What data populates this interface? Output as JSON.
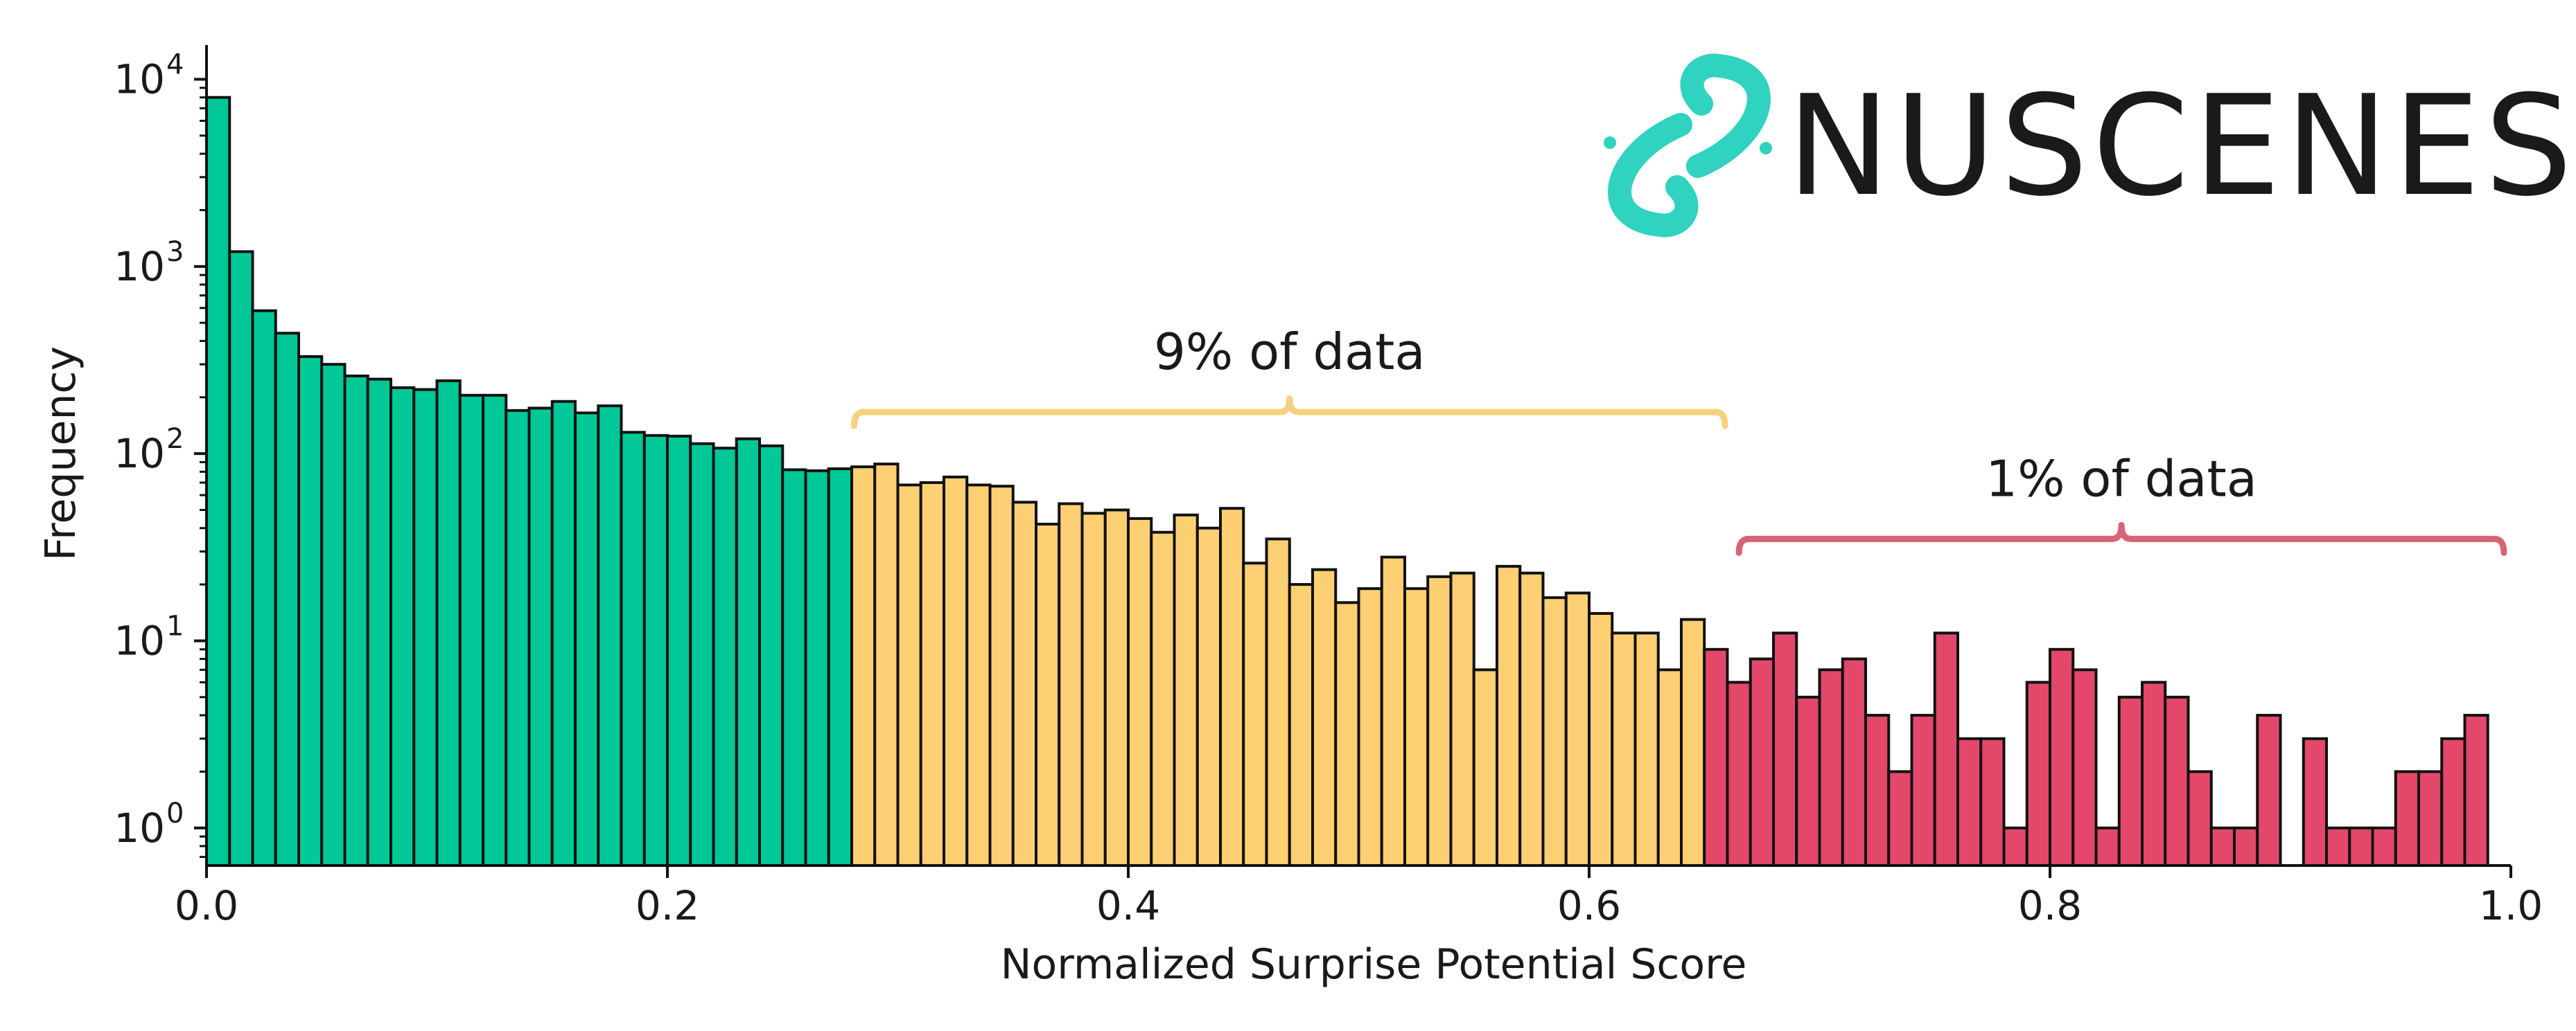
{
  "chart_data": {
    "type": "bar",
    "subtype": "histogram",
    "xlabel": "Normalized Surprise Potential Score",
    "ylabel": "Frequency",
    "yscale": "log",
    "xlim": [
      0.0,
      1.0
    ],
    "ylim": [
      0.63,
      14000
    ],
    "grid": false,
    "xticks": [
      {
        "value": 0.0,
        "label": "0.0"
      },
      {
        "value": 0.2,
        "label": "0.2"
      },
      {
        "value": 0.4,
        "label": "0.4"
      },
      {
        "value": 0.6,
        "label": "0.6"
      },
      {
        "value": 0.8,
        "label": "0.8"
      },
      {
        "value": 1.0,
        "label": "1.0"
      }
    ],
    "yticks": [
      {
        "value": 1,
        "base": "10",
        "exp": "0"
      },
      {
        "value": 10,
        "base": "10",
        "exp": "1"
      },
      {
        "value": 100,
        "base": "10",
        "exp": "2"
      },
      {
        "value": 1000,
        "base": "10",
        "exp": "3"
      },
      {
        "value": 10000,
        "base": "10",
        "exp": "4"
      }
    ],
    "bin_width": 0.01,
    "bin_start": 0.0,
    "values": [
      8000,
      1200,
      580,
      440,
      330,
      300,
      260,
      250,
      225,
      220,
      245,
      205,
      205,
      170,
      175,
      190,
      165,
      180,
      130,
      125,
      124,
      113,
      107,
      120,
      110,
      82,
      81,
      83,
      85,
      88,
      68,
      70,
      75,
      68,
      67,
      55,
      42,
      54,
      48,
      50,
      45,
      38,
      47,
      40,
      51,
      26,
      35,
      20,
      24,
      16,
      19,
      28,
      19,
      22,
      23,
      7,
      25,
      23,
      17,
      18,
      14,
      11,
      11,
      7,
      13,
      9,
      6,
      8,
      11,
      5,
      7,
      8,
      4,
      2,
      4,
      11,
      3,
      3,
      1,
      6,
      9,
      7,
      1,
      5,
      6,
      5,
      2,
      1,
      1,
      4,
      0,
      3,
      1,
      1,
      1,
      2,
      2,
      3,
      4
    ],
    "segments": [
      {
        "from_bin": 0,
        "to_bin": 27,
        "color": "#00c896"
      },
      {
        "from_bin": 28,
        "to_bin": 64,
        "color": "#fcd072"
      },
      {
        "from_bin": 65,
        "to_bin": 98,
        "color": "#e3476a"
      }
    ],
    "annotations": [
      {
        "text": "9% of data",
        "x_from": 0.278,
        "x_to": 0.662,
        "level": 100,
        "color": "#f4d27d"
      },
      {
        "text": "1% of data",
        "x_from": 0.662,
        "x_to": 1.0,
        "level": 21,
        "color": "#d96276"
      }
    ]
  },
  "logo": {
    "text": "NUSCENES",
    "icon": "nuscenes-link-icon",
    "icon_color": "#2fd3c0",
    "text_color": "#2b2b2b"
  }
}
